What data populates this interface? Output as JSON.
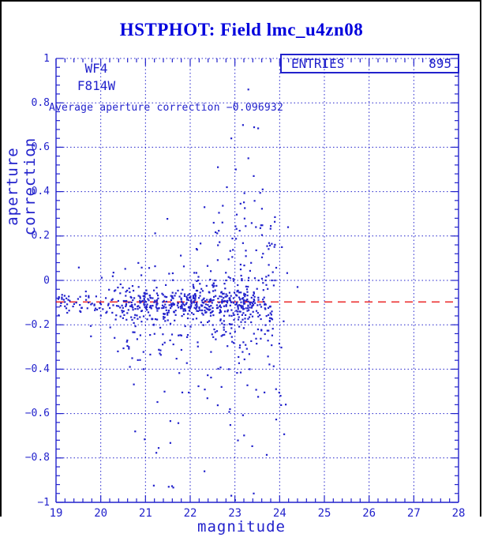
{
  "title": {
    "text": "HSTPHOT: Field lmc_u4zn08",
    "color": "#0000dd"
  },
  "annotations": {
    "camera": "WF4",
    "filter": "F814W",
    "average_text": "Average aperture correction −0.096932"
  },
  "stats_box": {
    "label": "ENTRIES",
    "value": "895"
  },
  "chart_data": {
    "type": "scatter",
    "title": "HSTPHOT: Field lmc_u4zn08",
    "xlabel": "magnitude",
    "ylabel": "aperture correction",
    "xlim": [
      19,
      28
    ],
    "ylim": [
      -1,
      1
    ],
    "grid": true,
    "x_ticks": [
      19,
      20,
      21,
      22,
      23,
      24,
      25,
      26,
      27,
      28
    ],
    "x_tick_labels": [
      "19",
      "20",
      "21",
      "22",
      "23",
      "24",
      "25",
      "26",
      "27",
      "28"
    ],
    "y_ticks": [
      -1,
      -0.8,
      -0.6,
      -0.4,
      -0.2,
      0,
      0.2,
      0.4,
      0.6,
      0.8,
      1
    ],
    "y_tick_labels": [
      "−1",
      "−0.8",
      "−0.6",
      "−0.4",
      "−0.2",
      "0",
      "0.2",
      "0.4",
      "0.6",
      "0.8",
      "1"
    ],
    "x_minor_step": 0.2,
    "y_minor_step": 0.04,
    "n_points": 895,
    "mean_line": {
      "value": -0.096932,
      "color": "#e80000",
      "style": "dashed"
    },
    "axis_color": "#2222cc",
    "point_color": "#2222cc",
    "seed": 42,
    "outlier_points": [
      [
        23.3,
        0.86
      ],
      [
        23.18,
        0.7
      ],
      [
        23.43,
        0.69
      ],
      [
        23.52,
        0.685
      ],
      [
        22.92,
        0.64
      ],
      [
        23.3,
        0.55
      ],
      [
        22.62,
        0.51
      ],
      [
        23.02,
        0.5
      ],
      [
        23.42,
        0.47
      ],
      [
        22.82,
        0.42
      ],
      [
        23.62,
        0.41
      ],
      [
        22.32,
        0.33
      ],
      [
        24.05,
        0.15
      ],
      [
        24.4,
        -0.03
      ],
      [
        23.92,
        -0.49
      ],
      [
        24.02,
        -0.52
      ],
      [
        22.92,
        -0.97
      ],
      [
        23.42,
        -0.96
      ],
      [
        21.52,
        -0.93
      ],
      [
        22.32,
        -0.86
      ]
    ],
    "clusters": [
      {
        "name": "bright-clump",
        "count": 18,
        "mag": {
          "min": 19.05,
          "max": 19.35,
          "power": 1.0
        },
        "val": {
          "mean": -0.1,
          "sigma": 0.025
        }
      },
      {
        "name": "core-band",
        "count": 372,
        "mag": {
          "min": 19.05,
          "max": 23.45,
          "power": 1.8
        },
        "val": {
          "mean": -0.102,
          "sigma": 0.03
        }
      },
      {
        "name": "mid-scatter",
        "count": 260,
        "mag": {
          "min": 19.3,
          "max": 23.85,
          "power": 1.7
        },
        "val": {
          "mean": -0.125,
          "sigma": 0.085
        }
      },
      {
        "name": "wide-scatter",
        "count": 140,
        "mag": {
          "min": 20.3,
          "max": 24.2,
          "power": 1.3
        },
        "val": {
          "mean": -0.21,
          "sigma": 0.21,
          "clamp_min": -0.97,
          "clamp_max": 0.5
        }
      },
      {
        "name": "upper-tail",
        "count": 60,
        "mag": {
          "min": 21.9,
          "max": 23.9,
          "power": 2.5
        },
        "val": {
          "mean": 0.15,
          "sigma": 0.13,
          "clamp_min": 0.0,
          "clamp_max": 0.68
        }
      },
      {
        "name": "deep-tail",
        "count": 25,
        "mag": {
          "min": 20.7,
          "max": 24.0,
          "power": 1.2
        },
        "val": {
          "mean": -0.68,
          "sigma": 0.17,
          "clamp_min": -0.99,
          "clamp_max": -0.4
        }
      }
    ]
  }
}
